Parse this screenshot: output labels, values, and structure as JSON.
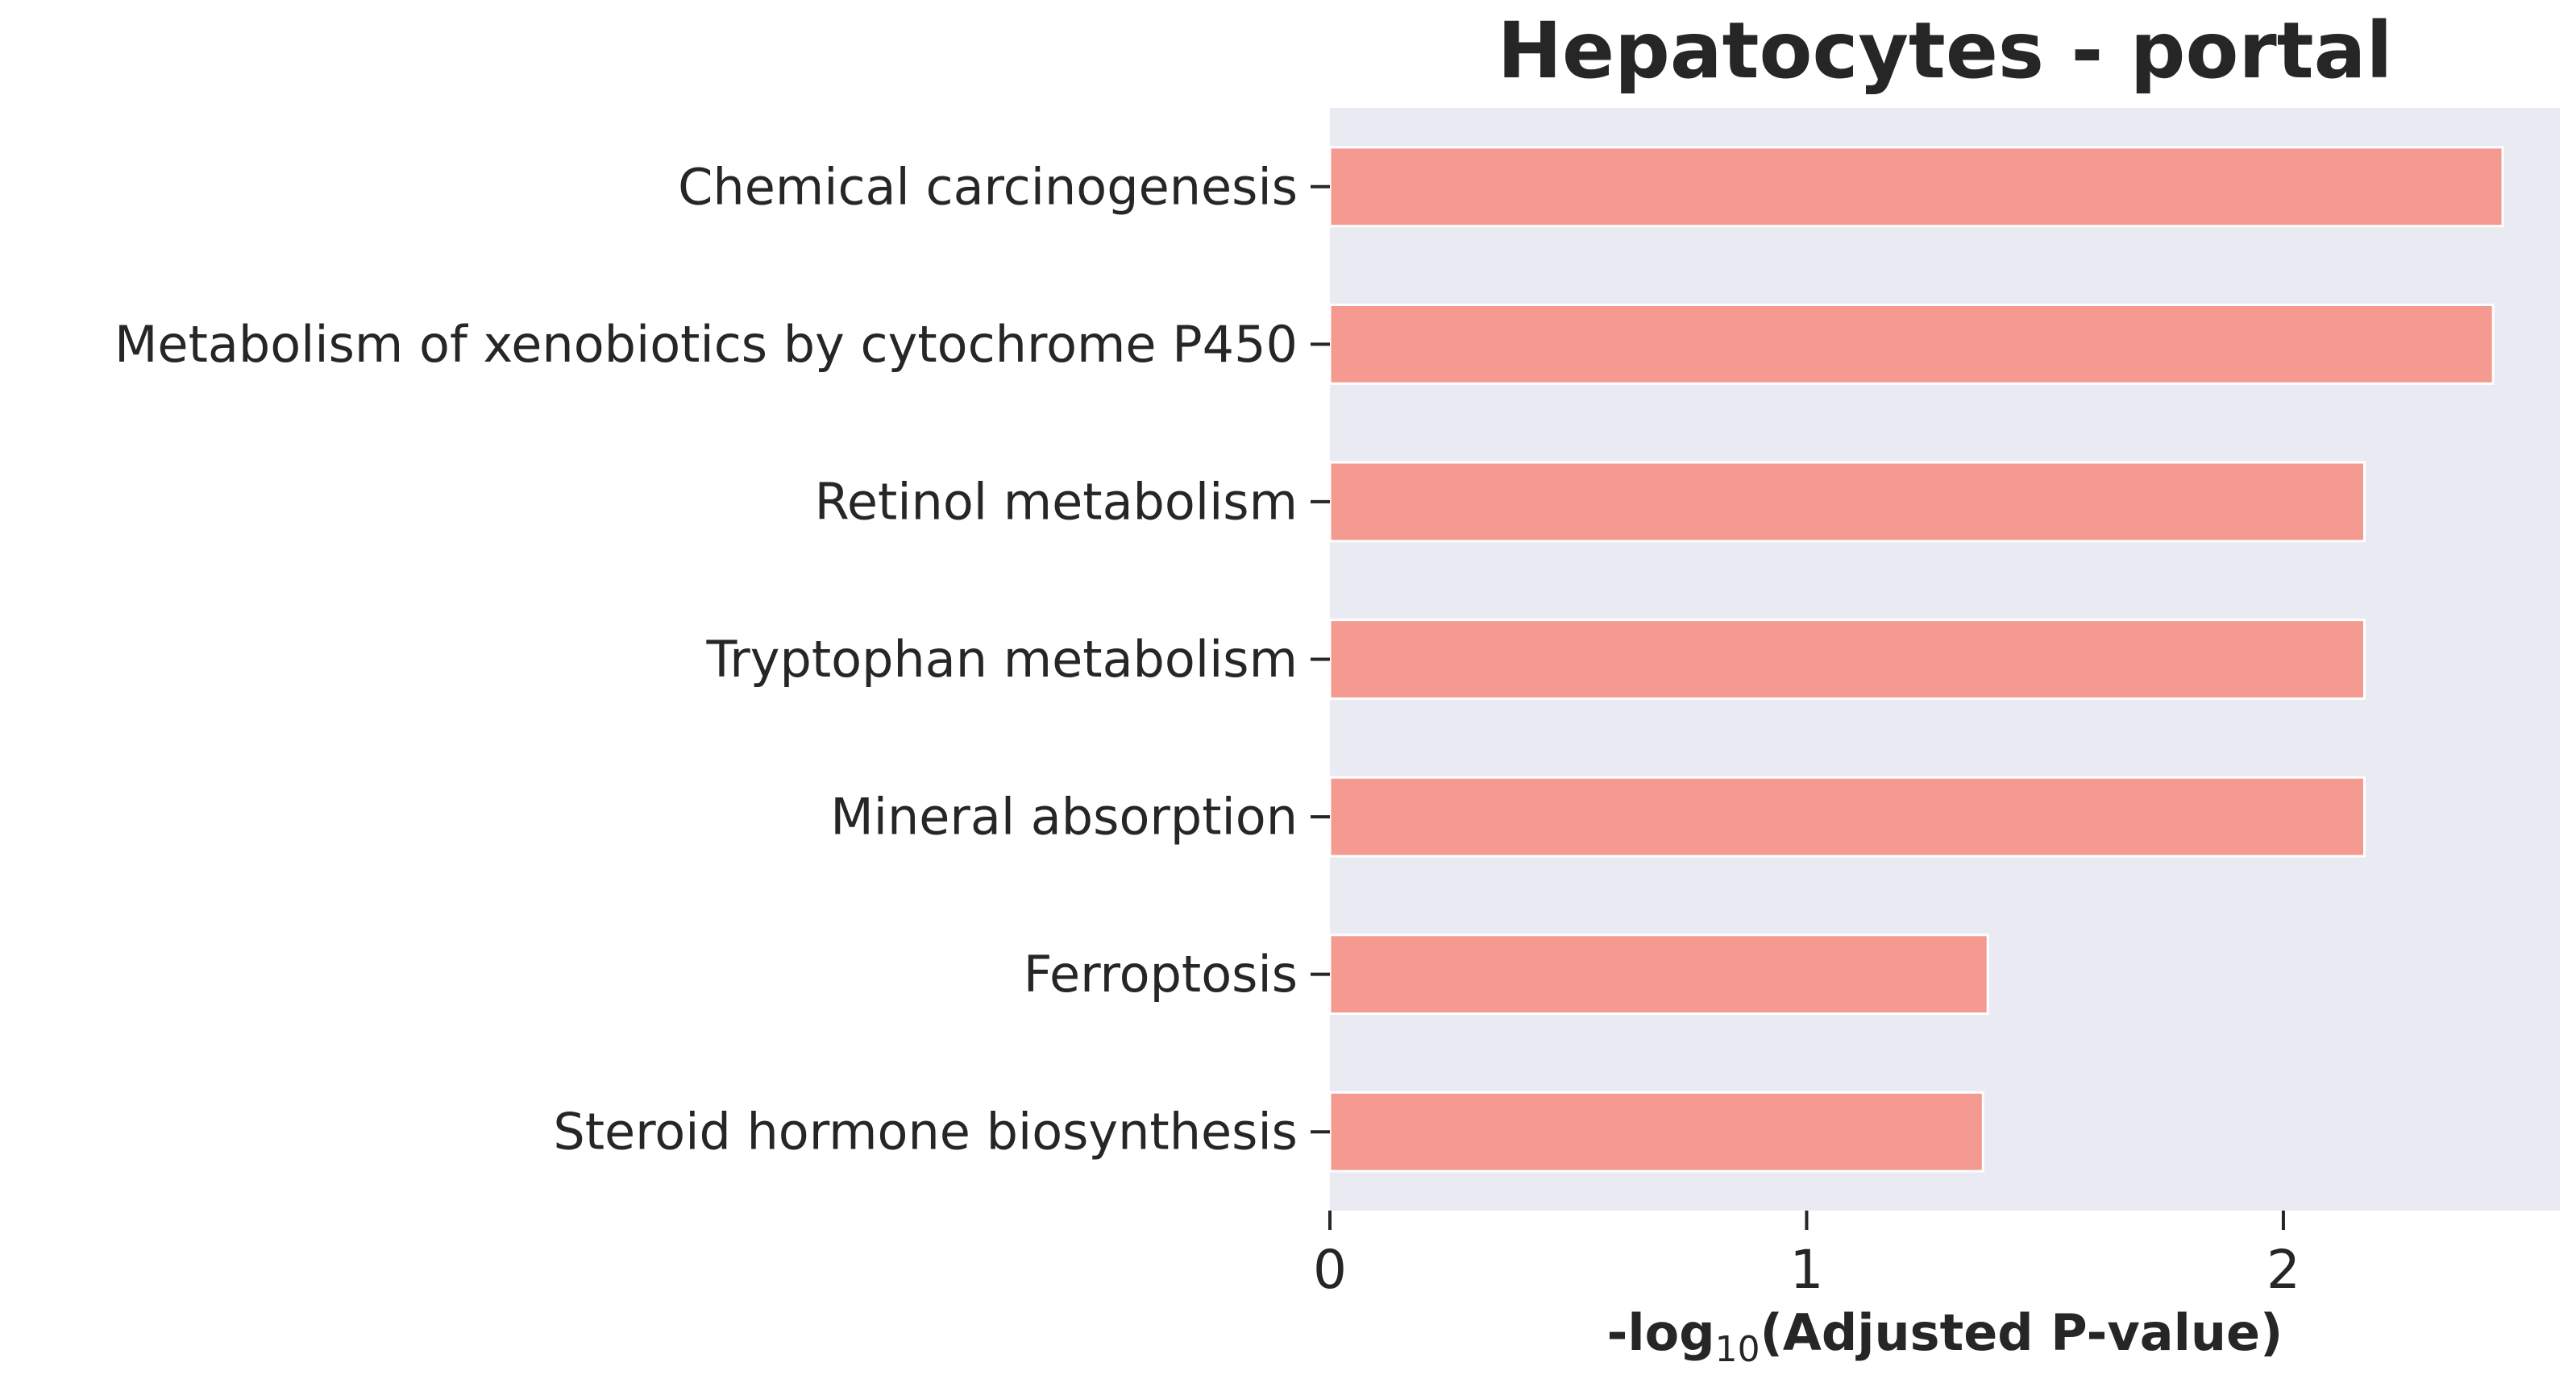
{
  "colors": {
    "bar": "#f49a91",
    "bar_edge": "#ffffff",
    "plot_background": "#eaeaf2",
    "text": "#262626",
    "page_background": "#ffffff"
  },
  "chart_data": {
    "type": "bar",
    "orientation": "horizontal",
    "title": "Hepatocytes - portal",
    "xlabel_prefix": "-log",
    "xlabel_subscript": "10",
    "xlabel_suffix": "(Adjusted P-value)",
    "ylabel": "",
    "categories": [
      "Chemical carcinogenesis",
      "Metabolism of xenobiotics by cytochrome P450",
      "Retinol metabolism",
      "Tryptophan metabolism",
      "Mineral absorption",
      "Ferroptosis",
      "Steroid hormone biosynthesis"
    ],
    "values": [
      2.46,
      2.44,
      2.17,
      2.17,
      2.17,
      1.38,
      1.37
    ],
    "xlim": [
      0,
      2.58
    ],
    "xticks": [
      0,
      1,
      2
    ],
    "xtick_labels": [
      "0",
      "1",
      "2"
    ],
    "grid": false,
    "legend": "none"
  }
}
